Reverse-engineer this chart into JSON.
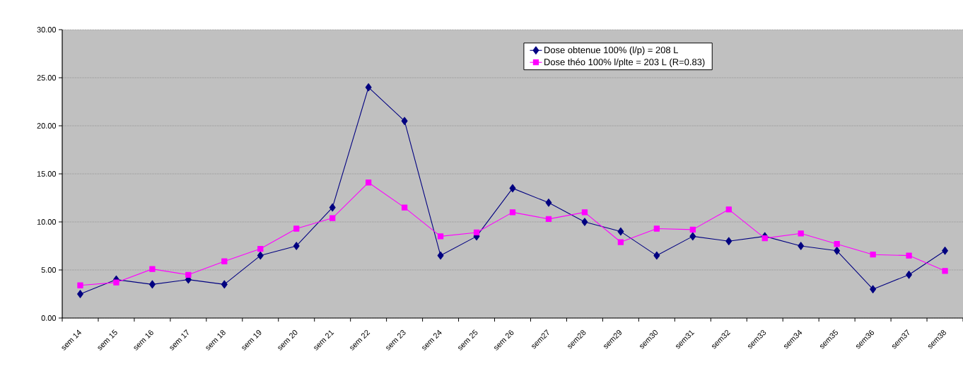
{
  "chart_data": {
    "type": "line",
    "categories": [
      "sem 14",
      "sem 15",
      "sem 16",
      "sem 17",
      "sem 18",
      "sem 19",
      "sem 20",
      "sem 21",
      "sem 22",
      "sem 23",
      "sem 24",
      "sem 25",
      "sem 26",
      "sem27",
      "sem28",
      "sem29",
      "sem30",
      "sem31",
      "sem32",
      "sem33",
      "sem34",
      "sem35",
      "sem36",
      "sem37",
      "sem38"
    ],
    "series": [
      {
        "name": "Dose obtenue 100% (l/p) = 208 L",
        "color": "#000080",
        "marker": "diamond",
        "values": [
          2.5,
          4.0,
          3.5,
          4.0,
          3.5,
          6.5,
          7.5,
          11.5,
          24.0,
          20.5,
          6.5,
          8.5,
          13.5,
          12.0,
          10.0,
          9.0,
          6.5,
          8.5,
          8.0,
          8.5,
          7.5,
          7.0,
          3.0,
          4.5,
          7.0
        ]
      },
      {
        "name": "Dose théo 100% l/plte = 203 L (R=0.83)",
        "color": "#ff00ff",
        "marker": "square",
        "values": [
          3.4,
          3.7,
          5.1,
          4.5,
          5.9,
          7.2,
          9.3,
          10.4,
          14.1,
          11.5,
          8.5,
          8.9,
          11.0,
          10.3,
          11.0,
          7.9,
          9.3,
          9.2,
          11.3,
          8.3,
          8.8,
          7.7,
          6.6,
          6.5,
          4.9
        ]
      }
    ],
    "ylim": [
      0,
      30
    ],
    "yticks": [
      {
        "value": 0,
        "label": "0.00"
      },
      {
        "value": 5,
        "label": "5.00"
      },
      {
        "value": 10,
        "label": "10.00"
      },
      {
        "value": 15,
        "label": "15.00"
      },
      {
        "value": 20,
        "label": "20.00"
      },
      {
        "value": 25,
        "label": "25.00"
      },
      {
        "value": 30,
        "label": "30.00"
      }
    ],
    "grid": "y",
    "legend": "top",
    "line_style": "solid"
  }
}
